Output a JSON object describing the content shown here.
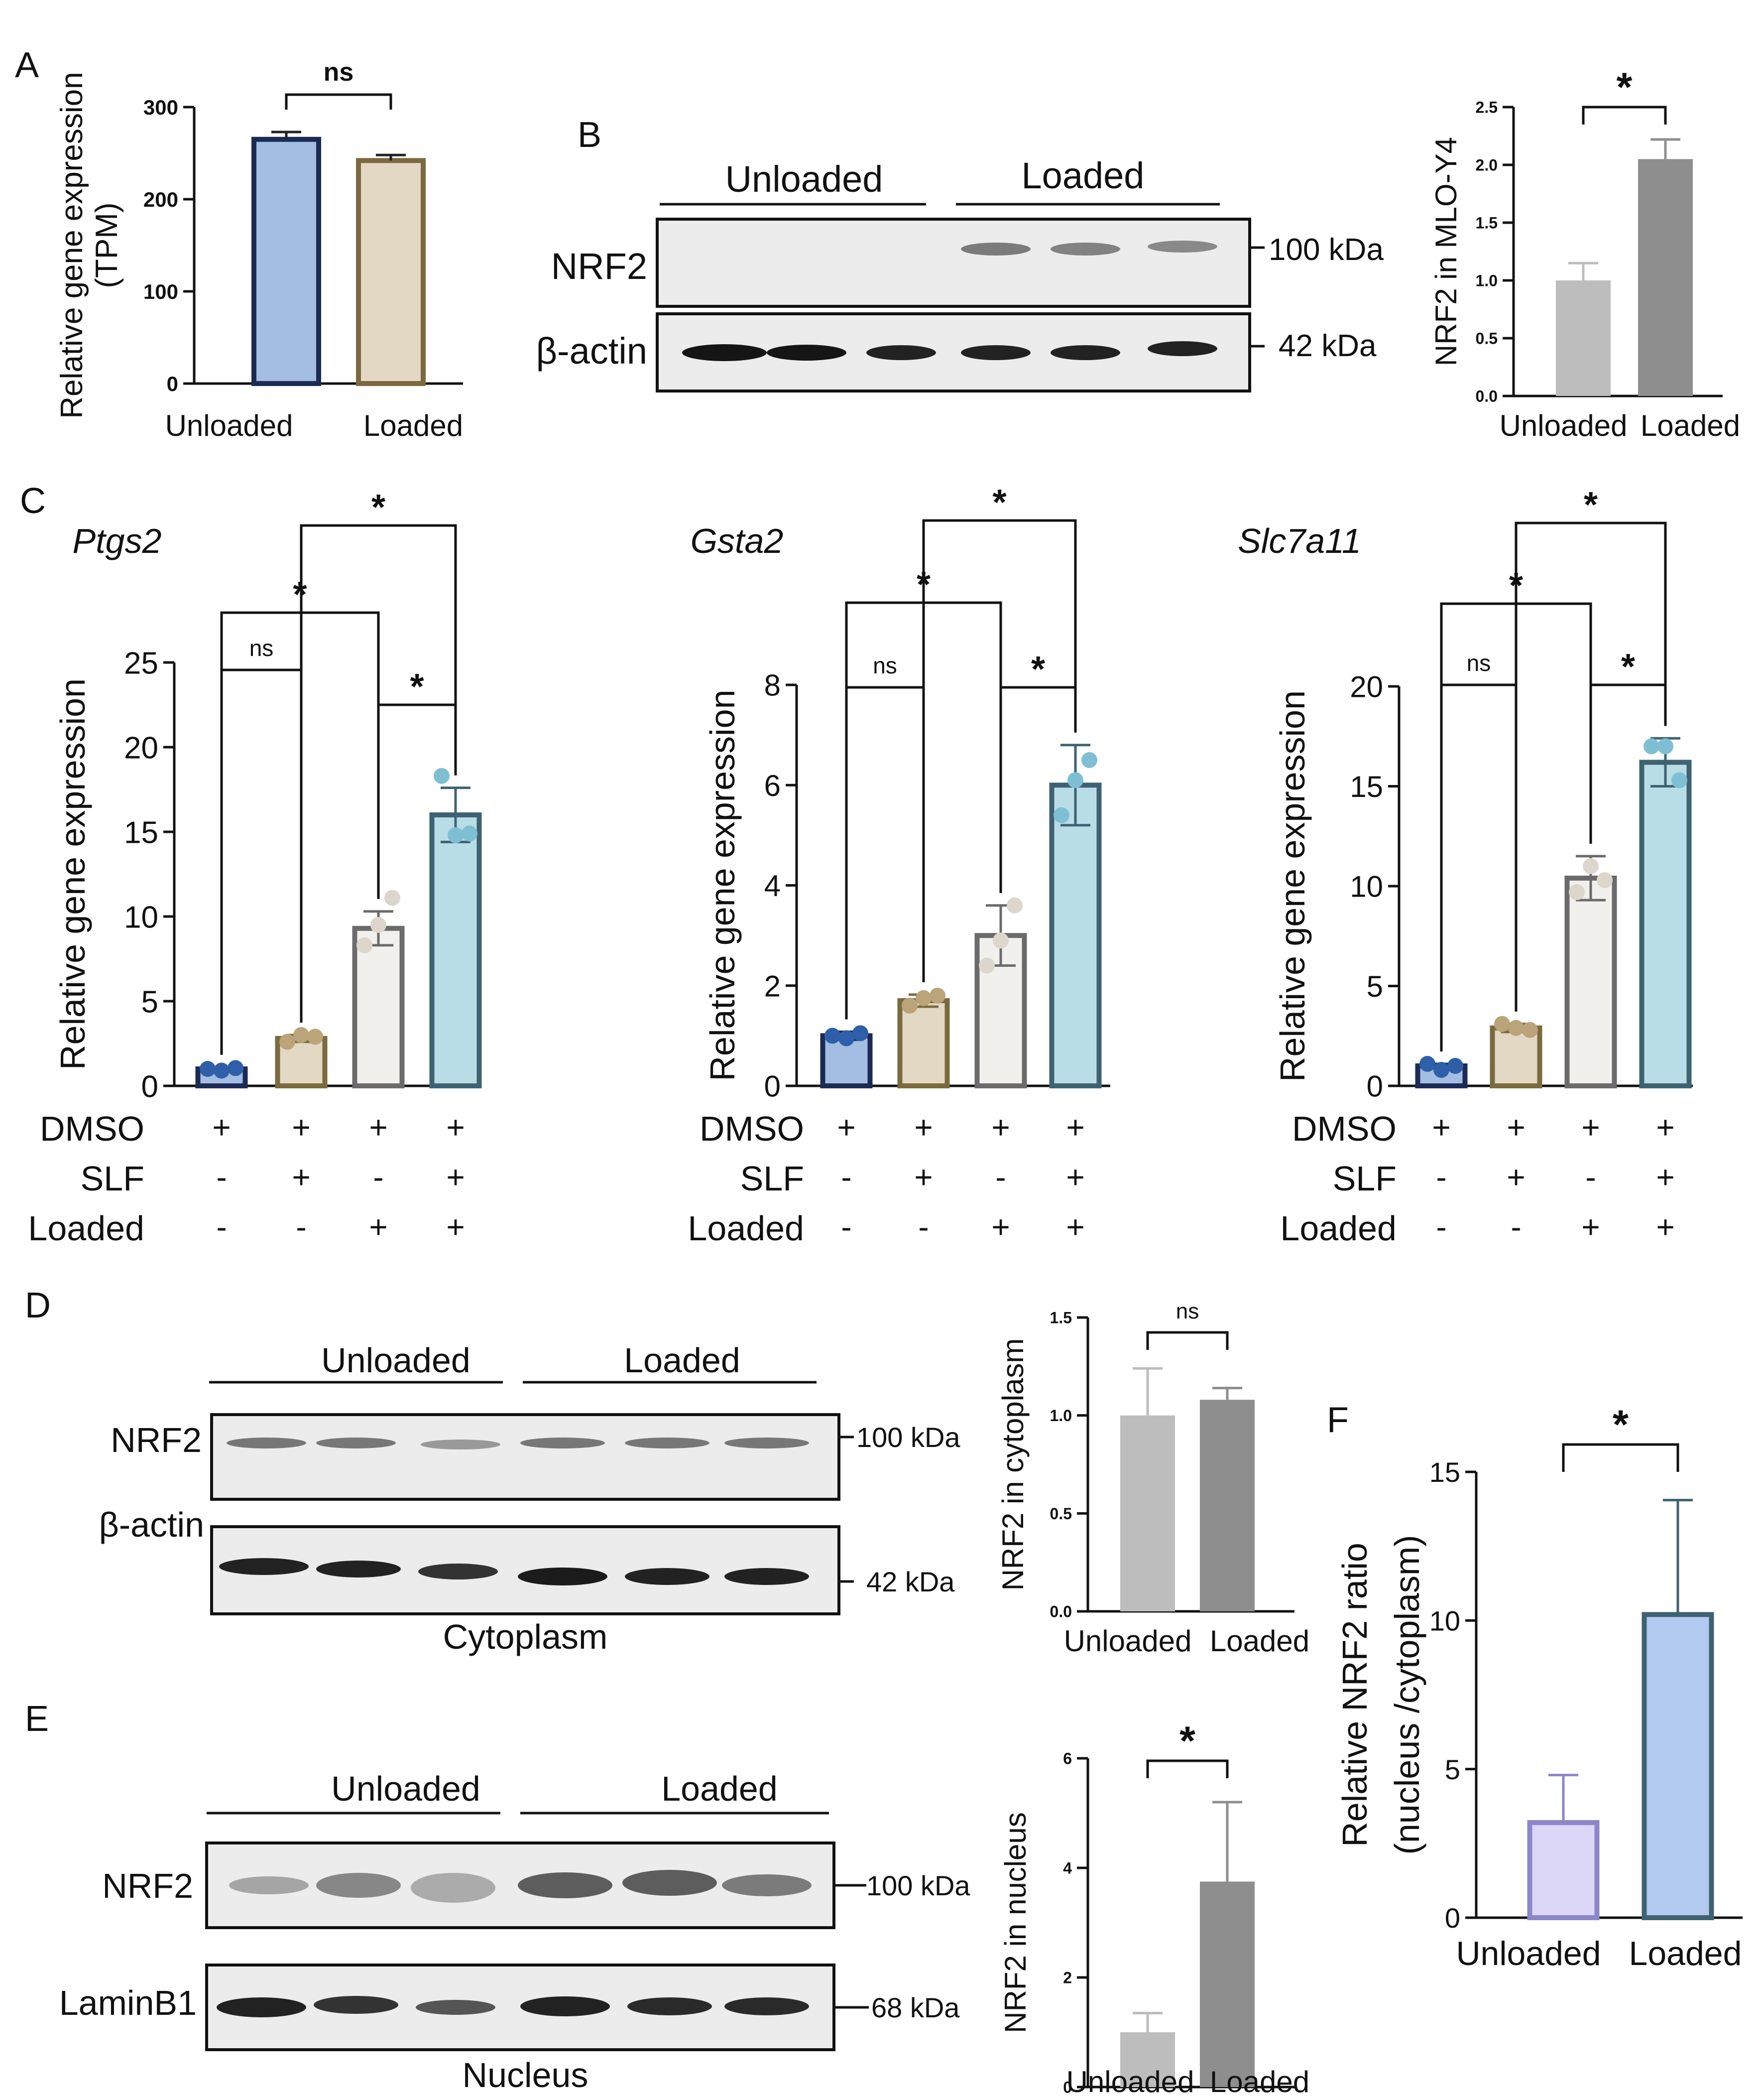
{
  "panels": {
    "A": "A",
    "B": "B",
    "C": "C",
    "D": "D",
    "E": "E",
    "F": "F"
  },
  "blots": {
    "B": {
      "group1": "Unloaded",
      "group2": "Loaded",
      "row1": "NRF2",
      "row2": "β-actin",
      "size1": "100 kDa",
      "size2": "42 kDa"
    },
    "D": {
      "group1": "Unloaded",
      "group2": "Loaded",
      "row1": "NRF2",
      "row2": "β-actin",
      "size1": "100 kDa",
      "size2": "42 kDa",
      "caption": "Cytoplasm"
    },
    "E": {
      "group1": "Unloaded",
      "group2": "Loaded",
      "row1": "NRF2",
      "row2": "LaminB1",
      "size1": "100 kDa",
      "size2": "68 kDa",
      "caption": "Nucleus"
    }
  },
  "treatments": {
    "labels": [
      "DMSO",
      "SLF",
      "Loaded"
    ],
    "matrix": [
      [
        "+",
        "+",
        "+",
        "+"
      ],
      [
        "-",
        "+",
        "-",
        "+"
      ],
      [
        "-",
        "-",
        "+",
        "+"
      ]
    ]
  },
  "chart_data": [
    {
      "id": "A",
      "type": "bar",
      "ylabel": "Relative gene expression (TPM)",
      "ylabel_lines": [
        "Relative gene expression",
        "(TPM)"
      ],
      "categories": [
        "Unloaded",
        "Loaded"
      ],
      "values": [
        265,
        242
      ],
      "errors": [
        8,
        6
      ],
      "ylim": [
        0,
        300
      ],
      "yticks": [
        0,
        100,
        200,
        300
      ],
      "colors": [
        "#a3bde3",
        "#e2d8c4"
      ],
      "edges": [
        "#1b2b55",
        "#7a6a3e"
      ],
      "significance": [
        {
          "from": 0,
          "to": 1,
          "label": "ns"
        }
      ]
    },
    {
      "id": "B",
      "type": "bar",
      "ylabel": "NRF2 in MLO-Y4",
      "categories": [
        "Unloaded",
        "Loaded"
      ],
      "values": [
        1.0,
        2.05
      ],
      "errors": [
        0.15,
        0.17
      ],
      "ylim": [
        0,
        2.5
      ],
      "yticks": [
        "0.0",
        "0.5",
        "1.0",
        "1.5",
        "2.0",
        "2.5"
      ],
      "colors": [
        "#bdbdbd",
        "#8e8e8e"
      ],
      "edges": [
        "#bdbdbd",
        "#8e8e8e"
      ],
      "significance": [
        {
          "from": 0,
          "to": 1,
          "label": "*"
        }
      ]
    },
    {
      "id": "C1",
      "type": "bar",
      "title": "Ptgs2",
      "ylabel": "Relative gene expression",
      "categories": [
        "DMSO",
        "DMSO+SLF",
        "DMSO+Loaded",
        "DMSO+SLF+Loaded"
      ],
      "values": [
        1.0,
        2.8,
        9.3,
        16.0
      ],
      "errors": [
        0.1,
        0.2,
        1.0,
        1.6
      ],
      "points": [
        [
          1.0,
          0.9,
          1.05
        ],
        [
          2.6,
          3.0,
          2.9
        ],
        [
          8.3,
          9.5,
          11.1
        ],
        [
          18.3,
          14.8,
          14.9
        ]
      ],
      "ylim": [
        0,
        25
      ],
      "yticks": [
        0,
        5,
        10,
        15,
        20,
        25
      ],
      "colors": [
        "#a3bde3",
        "#e2d8c4",
        "#f2f0ec",
        "#b8dde6"
      ],
      "edges": [
        "#1b2b55",
        "#7a6a3e",
        "#6b6b6b",
        "#3e6272"
      ],
      "dots": [
        "#2e5fa8",
        "#bba37a",
        "#dcd6cc",
        "#7fbfd4"
      ],
      "significance": [
        {
          "from": 0,
          "to": 1,
          "label": "ns"
        },
        {
          "from": 2,
          "to": 3,
          "label": "*"
        },
        {
          "from": 0,
          "to": 2,
          "label": "*"
        },
        {
          "from": 1,
          "to": 3,
          "label": "*"
        }
      ]
    },
    {
      "id": "C2",
      "type": "bar",
      "title": "Gsta2",
      "ylabel": "Relative gene expression",
      "categories": [
        "DMSO",
        "DMSO+SLF",
        "DMSO+Loaded",
        "DMSO+SLF+Loaded"
      ],
      "values": [
        1.0,
        1.7,
        3.0,
        6.0
      ],
      "errors": [
        0.08,
        0.12,
        0.6,
        0.8
      ],
      "points": [
        [
          1.0,
          0.95,
          1.05
        ],
        [
          1.6,
          1.75,
          1.8
        ],
        [
          2.4,
          2.9,
          3.6
        ],
        [
          5.4,
          6.1,
          6.5
        ]
      ],
      "ylim": [
        0,
        8
      ],
      "yticks": [
        0,
        2,
        4,
        6,
        8
      ],
      "colors": [
        "#a3bde3",
        "#e2d8c4",
        "#f2f0ec",
        "#b8dde6"
      ],
      "edges": [
        "#1b2b55",
        "#7a6a3e",
        "#6b6b6b",
        "#3e6272"
      ],
      "dots": [
        "#2e5fa8",
        "#bba37a",
        "#dcd6cc",
        "#7fbfd4"
      ],
      "significance": [
        {
          "from": 0,
          "to": 1,
          "label": "ns"
        },
        {
          "from": 2,
          "to": 3,
          "label": "*"
        },
        {
          "from": 0,
          "to": 2,
          "label": "*"
        },
        {
          "from": 1,
          "to": 3,
          "label": "*"
        }
      ]
    },
    {
      "id": "C3",
      "type": "bar",
      "title": "Slc7a11",
      "ylabel": "Relative gene expression",
      "categories": [
        "DMSO",
        "DMSO+SLF",
        "DMSO+Loaded",
        "DMSO+SLF+Loaded"
      ],
      "values": [
        1.0,
        2.9,
        10.4,
        16.2
      ],
      "errors": [
        0.1,
        0.2,
        1.1,
        1.2
      ],
      "points": [
        [
          1.1,
          0.8,
          1.0
        ],
        [
          3.1,
          2.9,
          2.8
        ],
        [
          9.7,
          11.0,
          10.3
        ],
        [
          17.0,
          17.0,
          15.3
        ]
      ],
      "ylim": [
        0,
        20
      ],
      "yticks": [
        0,
        5,
        10,
        15,
        20
      ],
      "colors": [
        "#a3bde3",
        "#e2d8c4",
        "#f2f0ec",
        "#b8dde6"
      ],
      "edges": [
        "#1b2b55",
        "#7a6a3e",
        "#6b6b6b",
        "#3e6272"
      ],
      "dots": [
        "#2e5fa8",
        "#bba37a",
        "#dcd6cc",
        "#7fbfd4"
      ],
      "significance": [
        {
          "from": 0,
          "to": 1,
          "label": "ns"
        },
        {
          "from": 2,
          "to": 3,
          "label": "*"
        },
        {
          "from": 0,
          "to": 2,
          "label": "*"
        },
        {
          "from": 1,
          "to": 3,
          "label": "*"
        }
      ]
    },
    {
      "id": "D",
      "type": "bar",
      "ylabel": "NRF2 in cytoplasm",
      "categories": [
        "Unloaded",
        "Loaded"
      ],
      "values": [
        1.0,
        1.08
      ],
      "errors": [
        0.24,
        0.06
      ],
      "ylim": [
        0,
        1.5
      ],
      "yticks": [
        "0.0",
        "0.5",
        "1.0",
        "1.5"
      ],
      "colors": [
        "#bdbdbd",
        "#8e8e8e"
      ],
      "edges": [
        "#bdbdbd",
        "#8e8e8e"
      ],
      "significance": [
        {
          "from": 0,
          "to": 1,
          "label": "ns"
        }
      ]
    },
    {
      "id": "E",
      "type": "bar",
      "ylabel": "NRF2 in nucleus",
      "categories": [
        "Unloaded",
        "Loaded"
      ],
      "values": [
        1.0,
        3.75
      ],
      "errors": [
        0.35,
        1.45
      ],
      "ylim": [
        0,
        6
      ],
      "yticks": [
        0,
        2,
        4,
        6
      ],
      "colors": [
        "#bdbdbd",
        "#8e8e8e"
      ],
      "edges": [
        "#bdbdbd",
        "#8e8e8e"
      ],
      "significance": [
        {
          "from": 0,
          "to": 1,
          "label": "*"
        }
      ]
    },
    {
      "id": "F",
      "type": "bar",
      "ylabel": "Relative NRF2 ratio (nucleus /cytoplasm)",
      "ylabel_lines": [
        "Relative NRF2 ratio",
        "(nucleus /cytoplasm)"
      ],
      "categories": [
        "Unloaded",
        "Loaded"
      ],
      "values": [
        3.2,
        10.2
      ],
      "errors": [
        1.6,
        3.85
      ],
      "ylim": [
        0,
        15
      ],
      "yticks": [
        0,
        5,
        10,
        15
      ],
      "colors": [
        "#dcd6f7",
        "#b3caf0"
      ],
      "edges": [
        "#8c86c9",
        "#3e6272"
      ],
      "significance": [
        {
          "from": 0,
          "to": 1,
          "label": "*"
        }
      ]
    }
  ]
}
